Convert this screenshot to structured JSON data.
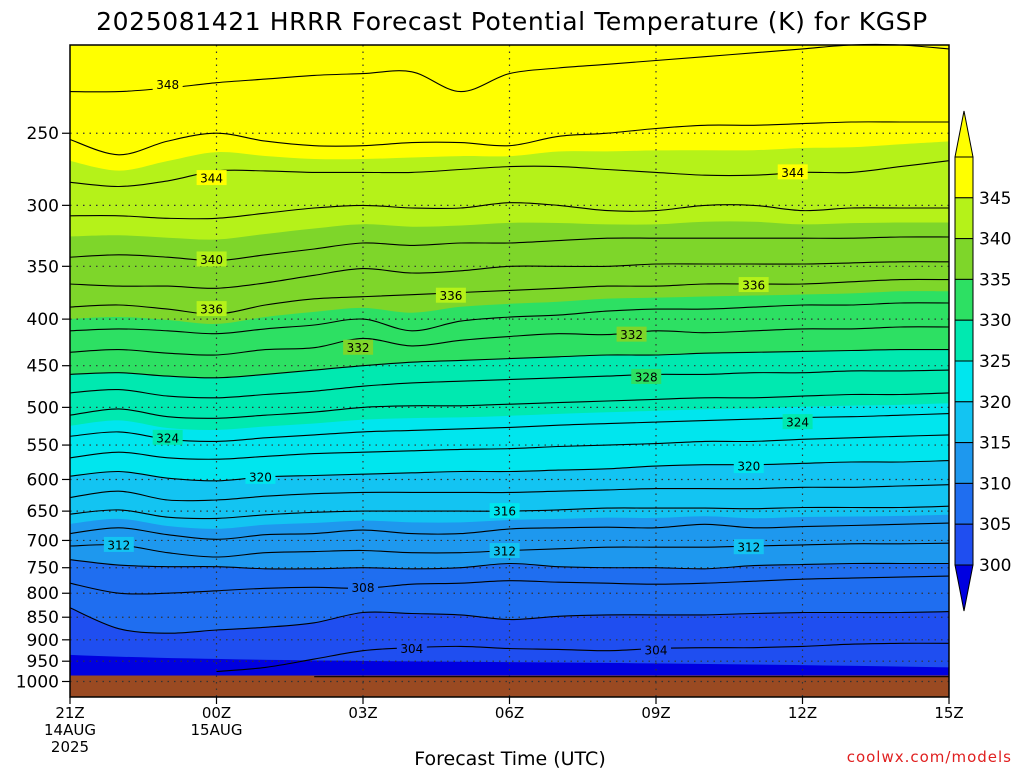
{
  "title": "2025081421 HRRR Forecast Potential Temperature (K) for KGSP",
  "credit": "coolwx.com/models",
  "colors": {
    "ground": "#9a4a22",
    "credit": "#e02020",
    "grid": "#333333",
    "contour": "#000000"
  },
  "chart_data": {
    "type": "heatmap",
    "title": "2025081421 HRRR Forecast Potential Temperature (K) for KGSP",
    "xlabel": "Forecast Time (UTC)",
    "ylabel": "",
    "y_scale": "log-pressure",
    "y_inverted": true,
    "ylim": [
      1040,
      200
    ],
    "xlim": [
      0,
      18
    ],
    "grid": true,
    "y_ticks": [
      250,
      300,
      350,
      400,
      450,
      500,
      550,
      600,
      650,
      700,
      750,
      800,
      850,
      900,
      950,
      1000
    ],
    "x_ticks": [
      {
        "x": 0,
        "lines": [
          "21Z",
          "14AUG",
          "2025"
        ]
      },
      {
        "x": 3,
        "lines": [
          "00Z",
          "15AUG"
        ]
      },
      {
        "x": 6,
        "lines": [
          "03Z"
        ]
      },
      {
        "x": 9,
        "lines": [
          "06Z"
        ]
      },
      {
        "x": 12,
        "lines": [
          "09Z"
        ]
      },
      {
        "x": 15,
        "lines": [
          "12Z"
        ]
      },
      {
        "x": 18,
        "lines": [
          "15Z"
        ]
      }
    ],
    "colorbar": {
      "levels": [
        300,
        305,
        310,
        315,
        320,
        325,
        330,
        335,
        340,
        345
      ],
      "colors": [
        "#1f4ef0",
        "#1f6ef0",
        "#1e98ee",
        "#13c4f2",
        "#00e6ee",
        "#00e9b0",
        "#2de063",
        "#7ed62a",
        "#b5f219",
        "#ffff00"
      ],
      "under_color": "#0000e0",
      "over_color": "#ffff00"
    },
    "ground_pressure": 985,
    "x": [
      0,
      1,
      2,
      3,
      4,
      5,
      6,
      7,
      8,
      9,
      10,
      11,
      12,
      13,
      14,
      15,
      16,
      17,
      18
    ],
    "contours": [
      {
        "level": 304,
        "pressure": [
          null,
          null,
          null,
          975,
          965,
          945,
          925,
          918,
          915,
          920,
          922,
          925,
          920,
          918,
          918,
          915,
          910,
          908,
          908
        ]
      },
      {
        "level": 306,
        "pressure": [
          830,
          875,
          885,
          878,
          872,
          862,
          840,
          842,
          845,
          855,
          848,
          845,
          845,
          845,
          842,
          840,
          840,
          840,
          838
        ]
      },
      {
        "level": 308,
        "pressure": [
          780,
          800,
          800,
          795,
          790,
          788,
          790,
          782,
          780,
          775,
          778,
          780,
          782,
          780,
          776,
          772,
          770,
          768,
          766
        ]
      },
      {
        "level": 310,
        "pressure": [
          735,
          745,
          748,
          748,
          752,
          752,
          750,
          752,
          750,
          742,
          748,
          750,
          750,
          752,
          746,
          744,
          742,
          742,
          742
        ]
      },
      {
        "level": 312,
        "pressure": [
          710,
          708,
          722,
          730,
          722,
          720,
          718,
          722,
          722,
          718,
          715,
          712,
          712,
          712,
          710,
          708,
          706,
          706,
          705
        ]
      },
      {
        "level": 314,
        "pressure": [
          688,
          678,
          690,
          698,
          690,
          688,
          682,
          688,
          688,
          680,
          678,
          677,
          678,
          672,
          678,
          676,
          674,
          672,
          670
        ]
      },
      {
        "level": 316,
        "pressure": [
          655,
          648,
          660,
          662,
          656,
          652,
          650,
          650,
          650,
          650,
          648,
          645,
          645,
          645,
          646,
          644,
          644,
          644,
          642
        ]
      },
      {
        "level": 318,
        "pressure": [
          628,
          618,
          632,
          632,
          626,
          622,
          620,
          620,
          620,
          620,
          618,
          616,
          614,
          614,
          614,
          612,
          612,
          610,
          608
        ]
      },
      {
        "level": 320,
        "pressure": [
          595,
          588,
          598,
          602,
          596,
          594,
          592,
          590,
          588,
          588,
          586,
          584,
          580,
          578,
          578,
          576,
          574,
          574,
          572
        ]
      },
      {
        "level": 322,
        "pressure": [
          568,
          560,
          568,
          570,
          566,
          562,
          560,
          558,
          556,
          555,
          552,
          550,
          548,
          545,
          545,
          542,
          540,
          538,
          536
        ]
      },
      {
        "level": 324,
        "pressure": [
          538,
          532,
          542,
          545,
          540,
          536,
          532,
          530,
          528,
          526,
          523,
          521,
          519,
          517,
          515,
          513,
          512,
          510,
          508
        ]
      },
      {
        "level": 326,
        "pressure": [
          510,
          502,
          512,
          514,
          510,
          506,
          500,
          498,
          498,
          496,
          494,
          492,
          490,
          488,
          488,
          486,
          484,
          484,
          482
        ]
      },
      {
        "level": 328,
        "pressure": [
          482,
          478,
          486,
          488,
          484,
          480,
          474,
          470,
          468,
          466,
          464,
          462,
          460,
          460,
          458,
          458,
          456,
          456,
          455
        ]
      },
      {
        "level": 330,
        "pressure": [
          460,
          458,
          462,
          464,
          460,
          455,
          450,
          446,
          444,
          442,
          440,
          438,
          438,
          436,
          435,
          434,
          433,
          432,
          432
        ]
      },
      {
        "level": 332,
        "pressure": [
          435,
          432,
          436,
          438,
          432,
          430,
          420,
          428,
          422,
          418,
          415,
          416,
          412,
          414,
          412,
          410,
          410,
          408,
          408
        ]
      },
      {
        "level": 334,
        "pressure": [
          412,
          410,
          412,
          415,
          410,
          406,
          400,
          412,
          402,
          398,
          396,
          392,
          390,
          390,
          388,
          386,
          386,
          384,
          384
        ]
      },
      {
        "level": 336,
        "pressure": [
          388,
          386,
          390,
          395,
          386,
          380,
          378,
          376,
          374,
          372,
          370,
          368,
          368,
          366,
          366,
          366,
          364,
          362,
          362
        ]
      },
      {
        "level": 338,
        "pressure": [
          366,
          368,
          368,
          370,
          365,
          358,
          352,
          356,
          354,
          350,
          350,
          350,
          348,
          348,
          348,
          348,
          347,
          346,
          346
        ]
      },
      {
        "level": 340,
        "pressure": [
          342,
          340,
          342,
          345,
          340,
          335,
          330,
          332,
          330,
          330,
          328,
          326,
          326,
          326,
          326,
          326,
          326,
          325,
          325
        ]
      },
      {
        "level": 342,
        "pressure": [
          308,
          308,
          310,
          310,
          306,
          302,
          300,
          302,
          302,
          298,
          300,
          304,
          304,
          300,
          300,
          304,
          302,
          302,
          302
        ]
      },
      {
        "level": 344,
        "pressure": [
          283,
          286,
          282,
          275,
          275,
          276,
          276,
          276,
          274,
          272,
          272,
          274,
          276,
          278,
          278,
          276,
          276,
          272,
          268
        ]
      },
      {
        "level": 346,
        "pressure": [
          254,
          264,
          255,
          250,
          255,
          258,
          258,
          256,
          256,
          258,
          252,
          250,
          247,
          245,
          245,
          244,
          243,
          243,
          243
        ]
      },
      {
        "level": 348,
        "pressure": [
          225,
          225,
          223,
          220,
          218,
          216,
          215,
          214,
          225,
          215,
          212,
          210,
          208,
          206,
          204,
          202,
          200,
          200,
          202
        ]
      }
    ],
    "contour_labels": [
      {
        "level": 348,
        "text": "348",
        "x": 2.0,
        "pressure": 221
      },
      {
        "level": 344,
        "text": "344",
        "x": 2.9,
        "pressure": 280
      },
      {
        "level": 344,
        "text": "344",
        "x": 14.8,
        "pressure": 276
      },
      {
        "level": 340,
        "text": "340",
        "x": 2.9,
        "pressure": 344
      },
      {
        "level": 336,
        "text": "336",
        "x": 2.9,
        "pressure": 390
      },
      {
        "level": 336,
        "text": "336",
        "x": 7.8,
        "pressure": 377
      },
      {
        "level": 336,
        "text": "336",
        "x": 14.0,
        "pressure": 367
      },
      {
        "level": 332,
        "text": "332",
        "x": 5.9,
        "pressure": 430
      },
      {
        "level": 332,
        "text": "332",
        "x": 11.5,
        "pressure": 416
      },
      {
        "level": 328,
        "text": "328",
        "x": 11.8,
        "pressure": 463
      },
      {
        "level": 324,
        "text": "324",
        "x": 2.0,
        "pressure": 540
      },
      {
        "level": 324,
        "text": "324",
        "x": 14.9,
        "pressure": 519
      },
      {
        "level": 320,
        "text": "320",
        "x": 3.9,
        "pressure": 596
      },
      {
        "level": 320,
        "text": "320",
        "x": 13.9,
        "pressure": 580
      },
      {
        "level": 316,
        "text": "316",
        "x": 8.9,
        "pressure": 650
      },
      {
        "level": 312,
        "text": "312",
        "x": 1.0,
        "pressure": 708
      },
      {
        "level": 312,
        "text": "312",
        "x": 8.9,
        "pressure": 719
      },
      {
        "level": 312,
        "text": "312",
        "x": 13.9,
        "pressure": 712
      },
      {
        "level": 308,
        "text": "308",
        "x": 6.0,
        "pressure": 788
      },
      {
        "level": 304,
        "text": "304",
        "x": 7.0,
        "pressure": 920
      },
      {
        "level": 304,
        "text": "304",
        "x": 12.0,
        "pressure": 924
      }
    ]
  }
}
